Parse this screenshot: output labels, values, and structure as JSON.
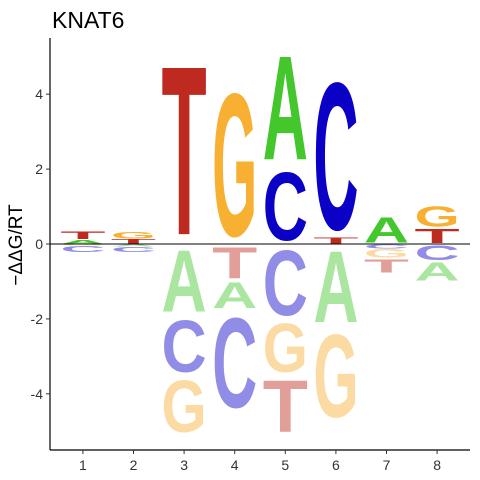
{
  "chart_data": {
    "type": "sequence-logo",
    "title": "KNAT6",
    "ylabel": "−ΔΔG/RT",
    "xlabel": "",
    "positions": [
      "1",
      "2",
      "3",
      "4",
      "5",
      "6",
      "7",
      "8"
    ],
    "ylim": [
      -5.5,
      5.5
    ],
    "y_ticks": [
      -4,
      -2,
      0,
      2,
      4
    ],
    "grid": false,
    "colors": {
      "A": "#43c72c",
      "C": "#0a00c6",
      "G": "#f7b032",
      "T": "#bf2a20"
    },
    "negative_opacity": 0.45,
    "letters": [
      {
        "pos": 1,
        "base": "A",
        "from": 0,
        "to": 0.12
      },
      {
        "pos": 1,
        "base": "T",
        "from": 0.12,
        "to": 0.35
      },
      {
        "pos": 1,
        "base": "C",
        "from": -0.22,
        "to": -0.04
      },
      {
        "pos": 1,
        "base": "G",
        "from": -0.04,
        "to": 0
      },
      {
        "pos": 2,
        "base": "T",
        "from": 0,
        "to": 0.14
      },
      {
        "pos": 2,
        "base": "G",
        "from": 0.14,
        "to": 0.34
      },
      {
        "pos": 2,
        "base": "C",
        "from": -0.22,
        "to": -0.07
      },
      {
        "pos": 2,
        "base": "A",
        "from": -0.07,
        "to": 0
      },
      {
        "pos": 3,
        "base": "T",
        "from": 0,
        "to": 5.2
      },
      {
        "pos": 3,
        "base": "G",
        "from": -5.1,
        "to": -3.5
      },
      {
        "pos": 3,
        "base": "C",
        "from": -3.5,
        "to": -1.9
      },
      {
        "pos": 3,
        "base": "A",
        "from": -1.9,
        "to": 0
      },
      {
        "pos": 4,
        "base": "G",
        "from": 0,
        "to": 4.4
      },
      {
        "pos": 4,
        "base": "C",
        "from": -4.5,
        "to": -1.75
      },
      {
        "pos": 4,
        "base": "A",
        "from": -1.75,
        "to": -0.95
      },
      {
        "pos": 4,
        "base": "T",
        "from": -0.95,
        "to": 0
      },
      {
        "pos": 5,
        "base": "C",
        "from": 0,
        "to": 2.1
      },
      {
        "pos": 5,
        "base": "A",
        "from": 2.1,
        "to": 5.3
      },
      {
        "pos": 5,
        "base": "T",
        "from": -5.1,
        "to": -3.5
      },
      {
        "pos": 5,
        "base": "G",
        "from": -3.5,
        "to": -2.0
      },
      {
        "pos": 5,
        "base": "C",
        "from": -2.0,
        "to": 0
      },
      {
        "pos": 6,
        "base": "T",
        "from": 0,
        "to": 0.17
      },
      {
        "pos": 6,
        "base": "C",
        "from": 0.17,
        "to": 4.7
      },
      {
        "pos": 6,
        "base": "G",
        "from": -4.75,
        "to": -2.2
      },
      {
        "pos": 6,
        "base": "A",
        "from": -2.2,
        "to": 0
      },
      {
        "pos": 7,
        "base": "A",
        "from": 0,
        "to": 0.78
      },
      {
        "pos": 7,
        "base": "T",
        "from": -0.78,
        "to": -0.38
      },
      {
        "pos": 7,
        "base": "G",
        "from": -0.38,
        "to": -0.12
      },
      {
        "pos": 7,
        "base": "C",
        "from": -0.12,
        "to": 0
      },
      {
        "pos": 8,
        "base": "T",
        "from": 0,
        "to": 0.44
      },
      {
        "pos": 8,
        "base": "G",
        "from": 0.44,
        "to": 1.05
      },
      {
        "pos": 8,
        "base": "A",
        "from": -1.0,
        "to": -0.45
      },
      {
        "pos": 8,
        "base": "C",
        "from": -0.45,
        "to": 0
      }
    ]
  }
}
